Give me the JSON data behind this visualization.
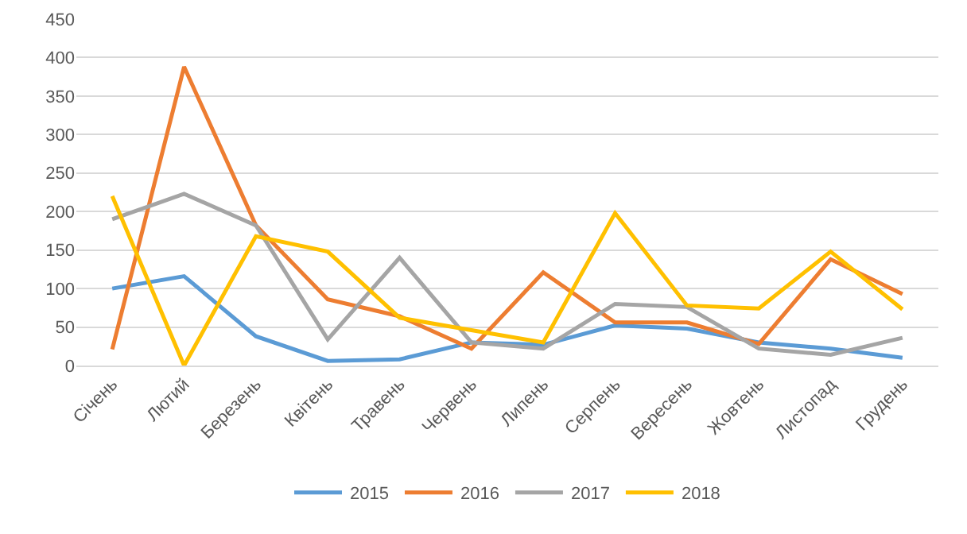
{
  "chart_data": {
    "type": "line",
    "categories": [
      "Січень",
      "Лютий",
      "Березень",
      "Квітень",
      "Травень",
      "Червень",
      "Липень",
      "Серпень",
      "Вересень",
      "Жовтень",
      "Листопад",
      "Грудень"
    ],
    "ylim": [
      0,
      450
    ],
    "yticks": [
      0,
      50,
      100,
      150,
      200,
      250,
      300,
      350,
      400,
      450
    ],
    "grid": "y",
    "legend": "bottom",
    "line_style": "solid",
    "marker": "none",
    "series": [
      {
        "name": "2015",
        "color": "#5b9bd5",
        "values": [
          100,
          116,
          38,
          6,
          8,
          30,
          27,
          52,
          48,
          30,
          22,
          10
        ]
      },
      {
        "name": "2016",
        "color": "#ed7d31",
        "values": [
          21,
          388,
          182,
          86,
          64,
          22,
          121,
          56,
          56,
          28,
          138,
          93
        ]
      },
      {
        "name": "2017",
        "color": "#a5a5a5",
        "values": [
          190,
          223,
          182,
          34,
          140,
          30,
          22,
          80,
          76,
          22,
          14,
          36
        ]
      },
      {
        "name": "2018",
        "color": "#ffc000",
        "values": [
          220,
          0,
          168,
          148,
          62,
          46,
          30,
          198,
          78,
          74,
          148,
          73
        ]
      }
    ]
  }
}
